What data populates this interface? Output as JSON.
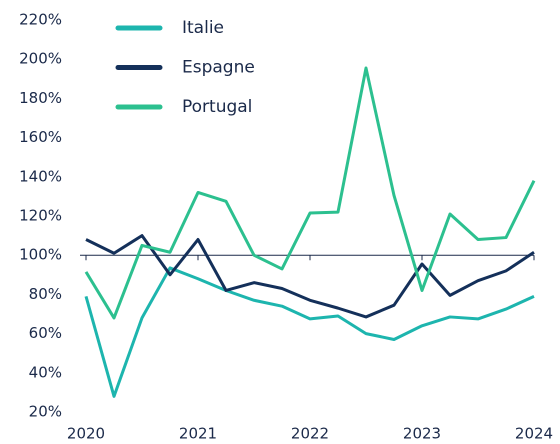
{
  "chart_data": {
    "type": "line",
    "x": [
      2020,
      2020.25,
      2020.5,
      2020.75,
      2021,
      2021.25,
      2021.5,
      2021.75,
      2022,
      2022.25,
      2022.5,
      2022.75,
      2023,
      2023.25,
      2023.5,
      2023.75,
      2024
    ],
    "series": [
      {
        "name": "Italie",
        "color": "#1db5ae",
        "values": [
          79,
          28,
          68,
          93.5,
          88,
          82,
          77,
          74,
          67.5,
          69,
          60,
          57,
          64,
          68.5,
          67.5,
          72.5,
          79
        ]
      },
      {
        "name": "Espagne",
        "color": "#14305a",
        "values": [
          108,
          101,
          110,
          90,
          108,
          82,
          86,
          83,
          77,
          73,
          68.5,
          74.5,
          95.5,
          79.5,
          87,
          92,
          101.5
        ]
      },
      {
        "name": "Portugal",
        "color": "#2cc08f",
        "values": [
          91.5,
          68,
          105,
          101.5,
          132,
          127.5,
          100,
          93,
          121.5,
          122,
          195.5,
          130.5,
          82,
          121,
          108,
          109,
          138
        ]
      }
    ],
    "xlim": [
      2020,
      2024
    ],
    "xticks": [
      2020,
      2021,
      2022,
      2023,
      2024
    ],
    "ylim": [
      20,
      220
    ],
    "yticks": [
      {
        "value": 20,
        "label": "20%"
      },
      {
        "value": 40,
        "label": "40%"
      },
      {
        "value": 60,
        "label": "60%"
      },
      {
        "value": 80,
        "label": "80%"
      },
      {
        "value": 100,
        "label": "100%"
      },
      {
        "value": 120,
        "label": "120%"
      },
      {
        "value": 140,
        "label": "140%"
      },
      {
        "value": 160,
        "label": "160%"
      },
      {
        "value": 180,
        "label": "180%"
      },
      {
        "value": 200,
        "label": "200%"
      },
      {
        "value": 220,
        "label": "220%"
      }
    ],
    "baseline": 100,
    "legend": "top-left"
  }
}
